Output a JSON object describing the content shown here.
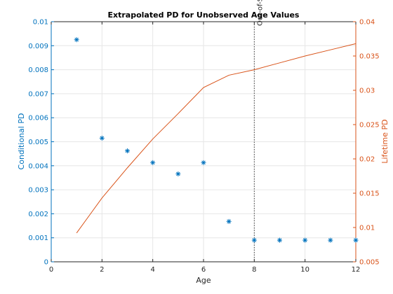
{
  "chart_data": {
    "type": "scatter+line",
    "title": "Extrapolated PD for Unobserved Age Values",
    "xlabel": "Age",
    "ylabel_left": "Conditional PD",
    "ylabel_right": "Lifetime PD",
    "xlim": [
      0,
      12
    ],
    "ylim_left": [
      0,
      0.01
    ],
    "ylim_right": [
      0.005,
      0.04
    ],
    "x_ticks": [
      "0",
      "2",
      "4",
      "6",
      "8",
      "10",
      "12"
    ],
    "y_left_ticks": [
      "0",
      "0.001",
      "0.002",
      "0.003",
      "0.004",
      "0.005",
      "0.006",
      "0.007",
      "0.008",
      "0.009",
      "0.01"
    ],
    "y_right_ticks": [
      "0.005",
      "0.01",
      "0.015",
      "0.02",
      "0.025",
      "0.03",
      "0.035",
      "0.04"
    ],
    "grid": true,
    "colors": {
      "left": "#0072bd",
      "right": "#d95319",
      "grid": "#e6e6e6",
      "axis": "#262626",
      "vline": "#404040"
    },
    "series": [
      {
        "name": "Conditional PD",
        "axis": "left",
        "marker": "*",
        "x": [
          1,
          2,
          3,
          4,
          5,
          6,
          7,
          8,
          9,
          10,
          11,
          12
        ],
        "values": [
          0.00925,
          0.00515,
          0.00462,
          0.00413,
          0.00366,
          0.00413,
          0.00168,
          0.0009,
          0.0009,
          0.0009,
          0.0009,
          0.0009
        ]
      },
      {
        "name": "Lifetime PD",
        "axis": "right",
        "marker": "line",
        "x": [
          1,
          2,
          3,
          4,
          5,
          6,
          7,
          8,
          9,
          10,
          11,
          12
        ],
        "values": [
          0.0092,
          0.0143,
          0.0187,
          0.0229,
          0.0266,
          0.0304,
          0.0322,
          0.033,
          0.034,
          0.035,
          0.0359,
          0.0368
        ]
      }
    ],
    "vline": {
      "x": 8,
      "label": "Out-of-Sample"
    }
  }
}
